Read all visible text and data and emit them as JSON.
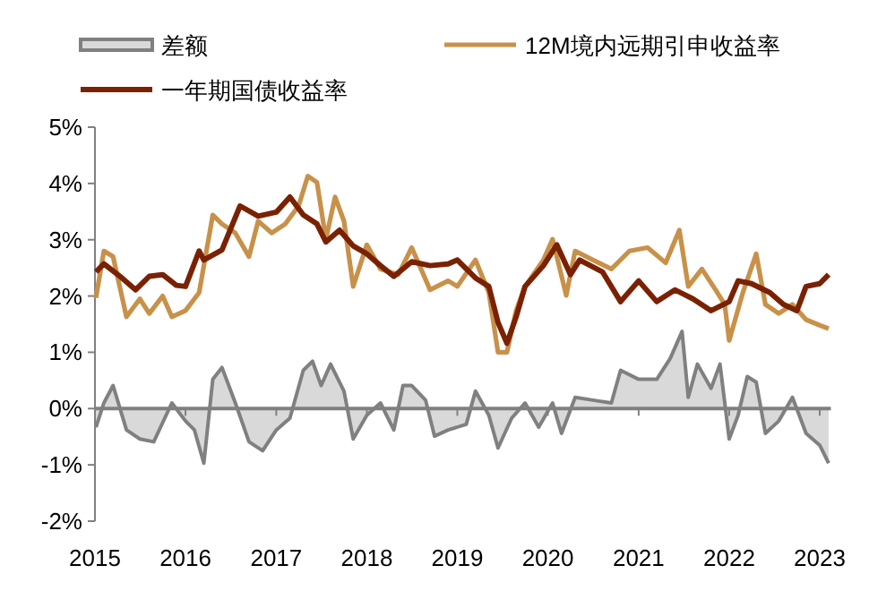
{
  "chart_data": {
    "type": "line",
    "xlim": [
      "2015-01-01",
      "2023-02-15"
    ],
    "xticks": [
      "2015",
      "2016",
      "2017",
      "2018",
      "2019",
      "2020",
      "2021",
      "2022",
      "2023"
    ],
    "ylim": [
      -2,
      5
    ],
    "yticks": [
      {
        "value": -2,
        "label": "-2%"
      },
      {
        "value": -1,
        "label": "-1%"
      },
      {
        "value": 0,
        "label": "0%"
      },
      {
        "value": 1,
        "label": "1%"
      },
      {
        "value": 2,
        "label": "2%"
      },
      {
        "value": 3,
        "label": "3%"
      },
      {
        "value": 4,
        "label": "4%"
      },
      {
        "value": 5,
        "label": "5%"
      }
    ],
    "legend": "top",
    "marker": "none",
    "line_style": "solid",
    "series": [
      {
        "name": "差额",
        "type": "area",
        "color": "#808080",
        "x": [
          "2015-01-05",
          "2015-02-06",
          "2015-03-15",
          "2015-05-08",
          "2015-07-01",
          "2015-08-26",
          "2015-11-07",
          "2016-01-01",
          "2016-02-06",
          "2016-03-15",
          "2016-04-20",
          "2016-05-27",
          "2016-07-20",
          "2016-09-13",
          "2016-11-07",
          "2017-01-01",
          "2017-02-25",
          "2017-04-20",
          "2017-05-27",
          "2017-07-01",
          "2017-08-08",
          "2017-10-01",
          "2017-11-07",
          "2018-01-01",
          "2018-02-25",
          "2018-04-20",
          "2018-05-27",
          "2018-07-01",
          "2018-08-26",
          "2018-10-01",
          "2018-11-25",
          "2019-02-06",
          "2019-03-15",
          "2019-05-08",
          "2019-06-14",
          "2019-08-08",
          "2019-10-01",
          "2019-11-25",
          "2020-01-20",
          "2020-02-25",
          "2020-04-20",
          "2020-07-01",
          "2020-09-13",
          "2020-10-20",
          "2021-01-01",
          "2021-03-15",
          "2021-05-08",
          "2021-06-25",
          "2021-07-20",
          "2021-08-26",
          "2021-10-20",
          "2021-11-25",
          "2022-01-01",
          "2022-02-06",
          "2022-03-15",
          "2022-04-20",
          "2022-05-27",
          "2022-07-20",
          "2022-09-13",
          "2022-11-07",
          "2023-01-01",
          "2023-02-06"
        ],
        "values": [
          -0.33,
          0.1,
          0.41,
          -0.38,
          -0.54,
          -0.59,
          0.1,
          -0.22,
          -0.38,
          -0.97,
          0.52,
          0.73,
          0.1,
          -0.59,
          -0.75,
          -0.38,
          -0.17,
          0.68,
          0.84,
          0.41,
          0.79,
          0.31,
          -0.54,
          -0.12,
          0.1,
          -0.38,
          0.41,
          0.41,
          0.15,
          -0.49,
          -0.38,
          -0.28,
          0.31,
          -0.12,
          -0.7,
          -0.17,
          0.1,
          -0.33,
          0.1,
          -0.44,
          0.2,
          0.15,
          0.1,
          0.68,
          0.52,
          0.52,
          0.89,
          1.37,
          0.2,
          0.79,
          0.36,
          0.79,
          -0.54,
          -0.12,
          0.57,
          0.47,
          -0.44,
          -0.22,
          0.2,
          -0.44,
          -0.65,
          -0.97
        ]
      },
      {
        "name": "12M境内远期引申收益率",
        "color": "#c8914a",
        "x": [
          "2015-01-05",
          "2015-02-06",
          "2015-03-15",
          "2015-05-08",
          "2015-07-01",
          "2015-08-08",
          "2015-10-01",
          "2015-11-07",
          "2016-01-01",
          "2016-02-25",
          "2016-04-20",
          "2016-05-27",
          "2016-07-20",
          "2016-09-13",
          "2016-10-20",
          "2016-12-14",
          "2017-02-06",
          "2017-04-01",
          "2017-05-08",
          "2017-06-14",
          "2017-07-20",
          "2017-08-26",
          "2017-10-01",
          "2017-11-07",
          "2018-01-01",
          "2018-02-25",
          "2018-05-08",
          "2018-07-01",
          "2018-09-13",
          "2018-11-25",
          "2019-01-01",
          "2019-03-15",
          "2019-05-08",
          "2019-06-14",
          "2019-07-20",
          "2019-08-26",
          "2019-10-01",
          "2019-12-14",
          "2020-01-20",
          "2020-03-15",
          "2020-04-20",
          "2020-07-01",
          "2020-09-13",
          "2020-11-25",
          "2021-02-06",
          "2021-04-20",
          "2021-06-14",
          "2021-07-20",
          "2021-09-13",
          "2021-11-07",
          "2021-12-14",
          "2022-01-01",
          "2022-02-25",
          "2022-04-20",
          "2022-05-27",
          "2022-07-20",
          "2022-09-13",
          "2022-11-07",
          "2023-01-01",
          "2023-02-06"
        ],
        "values": [
          1.97,
          2.8,
          2.7,
          1.63,
          1.95,
          1.69,
          2.0,
          1.63,
          1.74,
          2.06,
          3.44,
          3.28,
          3.12,
          2.7,
          3.33,
          3.12,
          3.28,
          3.6,
          4.13,
          4.02,
          3.01,
          3.76,
          3.33,
          2.17,
          2.91,
          2.48,
          2.38,
          2.86,
          2.11,
          2.27,
          2.17,
          2.64,
          2.06,
          1.0,
          1.0,
          1.74,
          2.17,
          2.64,
          3.01,
          2.01,
          2.8,
          2.64,
          2.48,
          2.8,
          2.86,
          2.59,
          3.17,
          2.17,
          2.48,
          2.11,
          1.85,
          1.21,
          2.06,
          2.75,
          1.85,
          1.69,
          1.85,
          1.58,
          1.48,
          1.42
        ]
      },
      {
        "name": "一年期国债收益率",
        "color": "#7b2103",
        "x": [
          "2015-01-05",
          "2015-02-06",
          "2015-04-20",
          "2015-06-14",
          "2015-08-08",
          "2015-10-01",
          "2015-11-25",
          "2016-01-01",
          "2016-02-25",
          "2016-03-15",
          "2016-05-27",
          "2016-08-08",
          "2016-10-20",
          "2017-01-01",
          "2017-02-25",
          "2017-04-20",
          "2017-06-14",
          "2017-07-20",
          "2017-09-13",
          "2017-11-07",
          "2018-01-01",
          "2018-02-25",
          "2018-04-20",
          "2018-07-01",
          "2018-09-13",
          "2018-11-25",
          "2019-01-01",
          "2019-03-15",
          "2019-05-08",
          "2019-06-14",
          "2019-07-20",
          "2019-08-26",
          "2019-10-01",
          "2019-12-14",
          "2020-02-06",
          "2020-04-01",
          "2020-05-08",
          "2020-08-08",
          "2020-10-20",
          "2021-01-01",
          "2021-03-15",
          "2021-05-27",
          "2021-08-08",
          "2021-10-20",
          "2022-01-01",
          "2022-02-06",
          "2022-04-01",
          "2022-06-14",
          "2022-08-08",
          "2022-10-01",
          "2022-11-07",
          "2023-01-01",
          "2023-02-06"
        ],
        "values": [
          2.43,
          2.57,
          2.32,
          2.11,
          2.35,
          2.38,
          2.19,
          2.17,
          2.8,
          2.64,
          2.82,
          3.6,
          3.42,
          3.49,
          3.76,
          3.44,
          3.28,
          2.96,
          3.17,
          2.89,
          2.75,
          2.54,
          2.35,
          2.61,
          2.54,
          2.57,
          2.64,
          2.32,
          2.17,
          1.53,
          1.16,
          1.63,
          2.17,
          2.54,
          2.91,
          2.38,
          2.64,
          2.43,
          1.9,
          2.27,
          1.9,
          2.11,
          1.95,
          1.74,
          1.9,
          2.27,
          2.22,
          2.06,
          1.85,
          1.74,
          2.17,
          2.22,
          2.38
        ]
      }
    ]
  }
}
